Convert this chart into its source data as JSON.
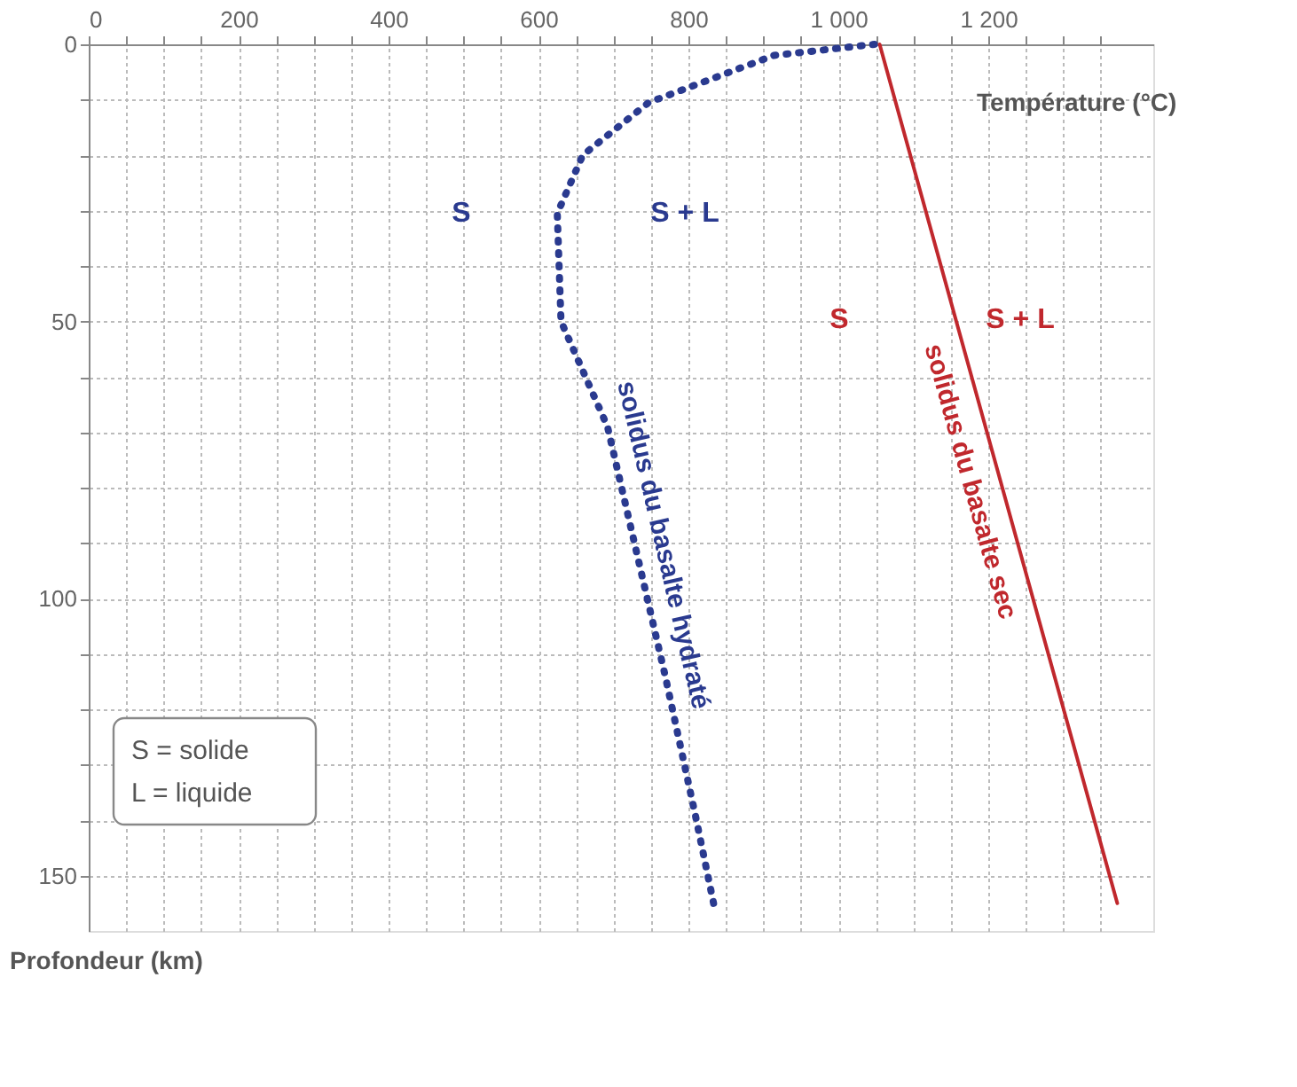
{
  "chart_data": {
    "type": "line",
    "xlabel": "Température (°C)",
    "ylabel": "Profondeur (km)",
    "xlim": [
      0,
      1420
    ],
    "ylim": [
      160,
      0
    ],
    "xticks": [
      0,
      {
        "value": 50,
        "label": null
      },
      {
        "value": 100,
        "label": null
      },
      {
        "value": 150,
        "label": null
      },
      200,
      {
        "value": 250,
        "label": null
      },
      {
        "value": 300,
        "label": null
      },
      {
        "value": 350,
        "label": null
      },
      400,
      {
        "value": 450,
        "label": null
      },
      {
        "value": 500,
        "label": null
      },
      {
        "value": 550,
        "label": null
      },
      600,
      {
        "value": 650,
        "label": null
      },
      {
        "value": 700,
        "label": null
      },
      {
        "value": 750,
        "label": null
      },
      800,
      {
        "value": 850,
        "label": null
      },
      {
        "value": 900,
        "label": null
      },
      {
        "value": 950,
        "label": null
      },
      {
        "value": 1000,
        "label": "1 000"
      },
      {
        "value": 1050,
        "label": null
      },
      {
        "value": 1100,
        "label": null
      },
      {
        "value": 1150,
        "label": null
      },
      {
        "value": 1200,
        "label": "1 200"
      },
      {
        "value": 1250,
        "label": null
      },
      {
        "value": 1300,
        "label": null
      },
      {
        "value": 1350,
        "label": null
      }
    ],
    "yticks": [
      0,
      {
        "value": 10,
        "label": null
      },
      {
        "value": 20,
        "label": null
      },
      {
        "value": 30,
        "label": null
      },
      {
        "value": 40,
        "label": null
      },
      50,
      {
        "value": 60,
        "label": null
      },
      {
        "value": 70,
        "label": null
      },
      {
        "value": 80,
        "label": null
      },
      {
        "value": 90,
        "label": null
      },
      100,
      {
        "value": 110,
        "label": null
      },
      {
        "value": 120,
        "label": null
      },
      {
        "value": 130,
        "label": null
      },
      {
        "value": 140,
        "label": null
      },
      150
    ],
    "grid": true,
    "series": [
      {
        "name": "solidus du basalte hydraté",
        "color": "#2a3a8f",
        "line_style": "dotted",
        "x": [
          1048,
          914,
          747,
          659,
          625,
          630,
          692,
          769,
          809,
          835
        ],
        "values": [
          0,
          2,
          10.5,
          20,
          30.5,
          50,
          69,
          114,
          139,
          156
        ]
      },
      {
        "name": "solidus du basalte sec",
        "color": "#c0282d",
        "line_style": "solid",
        "x": [
          1055,
          1372
        ],
        "values": [
          0,
          155
        ]
      }
    ],
    "annotations": [
      "S",
      "S + L",
      "S",
      "S + L",
      "S = solide",
      "L = liquide"
    ]
  }
}
